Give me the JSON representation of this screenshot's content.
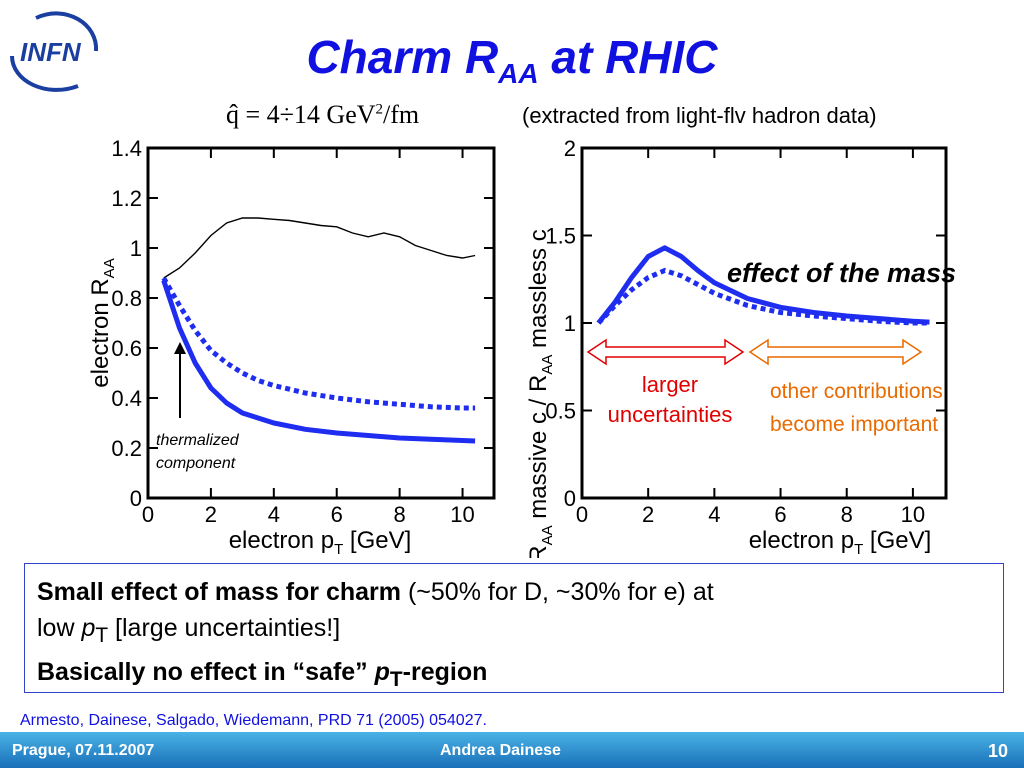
{
  "logo": {
    "text": "INFN"
  },
  "title": {
    "main": "Charm R",
    "sub": "AA",
    "rest": " at RHIC"
  },
  "formula": {
    "lhs": "q̂ = 4÷14 GeV",
    "exp": "2",
    "rhs": "/fm"
  },
  "note": "(extracted from light-flv hadron data)",
  "annotations": {
    "thermalized_line1": "thermalized",
    "thermalized_line2": "component",
    "effect_of_mass": "effect of the mass",
    "larger_line1": "larger",
    "larger_line2": "uncertainties",
    "other_line1": "other contributions",
    "other_line2": "become important"
  },
  "summary": {
    "l1_bold": "Small effect of mass for charm",
    "l1_rest": " (~50% for D, ~30% for e) at",
    "l2_a": "low ",
    "l2_p": "p",
    "l2_sub": "T",
    "l2_b": " [large uncertainties!]",
    "l3_a": "Basically no effect in “safe” ",
    "l3_p": "p",
    "l3_sub": "T",
    "l3_b": "-region"
  },
  "citation": "Armesto, Dainese, Salgado, Wiedemann, PRD 71 (2005) 054027.",
  "footer": {
    "left": "Prague, 07.11.2007",
    "center": "Andrea Dainese",
    "page": "10"
  },
  "colors": {
    "title": "#1010e0",
    "curve": "#1f2df0",
    "red": "#e00000",
    "orange": "#e86a00"
  },
  "chart_data": [
    {
      "type": "line",
      "xlabel": "electron p_T [GeV]",
      "ylabel": "electron R_AA",
      "xlim": [
        0,
        11
      ],
      "ylim": [
        0,
        1.4
      ],
      "xticks": [
        "0",
        "2",
        "4",
        "6",
        "8",
        "10"
      ],
      "yticks": [
        "0",
        "0.2",
        "0.4",
        "0.6",
        "0.8",
        "1",
        "1.2",
        "1.4"
      ],
      "series": [
        {
          "style": "thin-black",
          "x": [
            0.5,
            1,
            1.5,
            2,
            2.5,
            3,
            3.5,
            4,
            4.5,
            5,
            5.5,
            6,
            6.5,
            7,
            7.5,
            8,
            8.5,
            9,
            9.5,
            10,
            10.4
          ],
          "values": [
            0.88,
            0.92,
            0.98,
            1.05,
            1.1,
            1.12,
            1.12,
            1.115,
            1.11,
            1.1,
            1.09,
            1.085,
            1.06,
            1.045,
            1.06,
            1.045,
            1.01,
            0.99,
            0.97,
            0.96,
            0.97
          ]
        },
        {
          "style": "thick-solid",
          "x": [
            0.5,
            1,
            1.5,
            2,
            2.5,
            3,
            3.5,
            4,
            5,
            6,
            7,
            8,
            9,
            10,
            10.4
          ],
          "values": [
            0.87,
            0.68,
            0.54,
            0.44,
            0.38,
            0.34,
            0.32,
            0.3,
            0.275,
            0.26,
            0.25,
            0.24,
            0.235,
            0.23,
            0.228
          ]
        },
        {
          "style": "thick-dotted",
          "x": [
            0.5,
            1,
            1.5,
            2,
            2.5,
            3,
            3.5,
            4,
            5,
            6,
            7,
            8,
            9,
            10,
            10.4
          ],
          "values": [
            0.88,
            0.77,
            0.67,
            0.59,
            0.54,
            0.5,
            0.47,
            0.45,
            0.42,
            0.4,
            0.385,
            0.375,
            0.365,
            0.36,
            0.36
          ]
        }
      ]
    },
    {
      "type": "line",
      "xlabel": "electron p_T [GeV]",
      "ylabel": "R_AA massive c / R_AA massless c",
      "xlim": [
        0,
        11
      ],
      "ylim": [
        0,
        2
      ],
      "xticks": [
        "0",
        "2",
        "4",
        "6",
        "8",
        "10"
      ],
      "yticks": [
        "0",
        "0.5",
        "1",
        "1.5",
        "2"
      ],
      "series": [
        {
          "style": "thick-solid",
          "x": [
            0.5,
            1,
            1.5,
            2,
            2.5,
            3,
            3.5,
            4,
            5,
            6,
            7,
            8,
            9,
            10,
            10.5
          ],
          "values": [
            1.0,
            1.12,
            1.26,
            1.38,
            1.43,
            1.38,
            1.3,
            1.23,
            1.14,
            1.09,
            1.06,
            1.04,
            1.025,
            1.01,
            1.005
          ]
        },
        {
          "style": "thick-dotted",
          "x": [
            0.5,
            1,
            1.5,
            2,
            2.5,
            3,
            3.5,
            4,
            5,
            6,
            7,
            8,
            9,
            10,
            10.5
          ],
          "values": [
            1.0,
            1.1,
            1.19,
            1.26,
            1.3,
            1.27,
            1.22,
            1.17,
            1.1,
            1.06,
            1.04,
            1.025,
            1.01,
            1.0,
            1.0
          ]
        }
      ]
    }
  ]
}
